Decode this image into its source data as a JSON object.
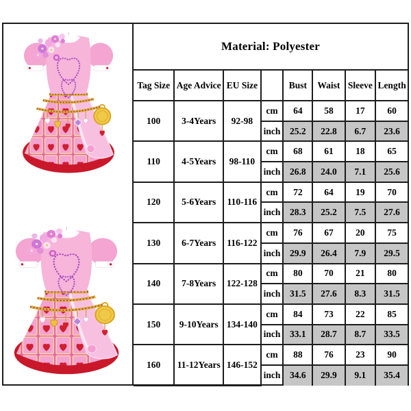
{
  "table": {
    "material": "Material: Polyester",
    "columns": [
      "Tag Size",
      "Age Advice",
      "EU Size",
      "",
      "Bust",
      "Waist",
      "Sleeve",
      "Length"
    ],
    "unit_cm": "cm",
    "unit_inch": "inch",
    "rows": [
      {
        "tag_size": "100",
        "age_advice": "3-4Years",
        "eu_size": "92-98",
        "cm": [
          "64",
          "58",
          "17",
          "60"
        ],
        "inch": [
          "25.2",
          "22.8",
          "6.7",
          "23.6"
        ]
      },
      {
        "tag_size": "110",
        "age_advice": "4-5Years",
        "eu_size": "98-110",
        "cm": [
          "68",
          "61",
          "18",
          "65"
        ],
        "inch": [
          "26.8",
          "24.0",
          "7.1",
          "25.6"
        ]
      },
      {
        "tag_size": "120",
        "age_advice": "5-6Years",
        "eu_size": "110-116",
        "cm": [
          "72",
          "64",
          "19",
          "70"
        ],
        "inch": [
          "28.3",
          "25.2",
          "7.5",
          "27.6"
        ]
      },
      {
        "tag_size": "130",
        "age_advice": "6-7Years",
        "eu_size": "116-122",
        "cm": [
          "76",
          "67",
          "20",
          "75"
        ],
        "inch": [
          "29.9",
          "26.4",
          "7.9",
          "29.5"
        ]
      },
      {
        "tag_size": "140",
        "age_advice": "7-8Years",
        "eu_size": "122-128",
        "cm": [
          "80",
          "70",
          "21",
          "80"
        ],
        "inch": [
          "31.5",
          "27.6",
          "8.3",
          "31.5"
        ]
      },
      {
        "tag_size": "150",
        "age_advice": "9-10Years",
        "eu_size": "134-140",
        "cm": [
          "84",
          "73",
          "22",
          "85"
        ],
        "inch": [
          "33.1",
          "28.7",
          "8.7",
          "33.5"
        ]
      },
      {
        "tag_size": "160",
        "age_advice": "11-12Years",
        "eu_size": "146-152",
        "cm": [
          "88",
          "76",
          "23",
          "90"
        ],
        "inch": [
          "34.6",
          "29.9",
          "9.1",
          "35.4"
        ]
      }
    ]
  },
  "photos": {
    "count": 2,
    "description": "pink princess dress with dotted hearts bodice, flower shoulder trim, gold chain belt and red-heart card-print skirt with red hem"
  },
  "colors": {
    "page_bg": "#ffffff",
    "table_border": "#1c1c1c",
    "inch_row_bg": "#c6c6c6",
    "dress_pink": "#f6b5d9",
    "card_heart_red": "#cf1f30",
    "hem_red": "#c9182a",
    "chain_gold": "#dca93c"
  }
}
